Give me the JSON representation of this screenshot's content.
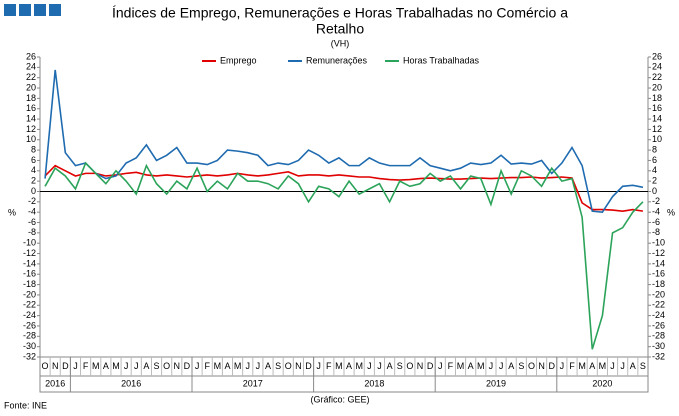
{
  "chart_data": {
    "type": "line",
    "title": [
      "Índices de Emprego, Remunerações e Horas Trabalhadas no Comércio a",
      "Retalho"
    ],
    "subtitle": "(VH)",
    "y_label": "%",
    "y2_label": "%",
    "source": "Fonte: INE",
    "credit": "(Gráfico: GEE)",
    "categories": [
      "O",
      "N",
      "D",
      "J",
      "F",
      "M",
      "A",
      "M",
      "J",
      "J",
      "A",
      "S",
      "O",
      "N",
      "D",
      "J",
      "F",
      "M",
      "A",
      "M",
      "J",
      "J",
      "A",
      "S",
      "O",
      "N",
      "D",
      "J",
      "F",
      "M",
      "A",
      "M",
      "J",
      "J",
      "A",
      "S",
      "O",
      "N",
      "D",
      "J",
      "F",
      "M",
      "A",
      "M",
      "J",
      "J",
      "A",
      "S",
      "O",
      "N",
      "D",
      "J",
      "F",
      "M",
      "A",
      "M",
      "J",
      "J",
      "A",
      "S"
    ],
    "year_labels": [
      "2016",
      "2016",
      "2017",
      "2018",
      "2019",
      "2020"
    ],
    "ylim": [
      -32,
      26
    ],
    "yticks": [
      -32,
      -30,
      -28,
      -26,
      -24,
      -22,
      -20,
      -18,
      -16,
      -14,
      -12,
      -10,
      -8,
      -6,
      -4,
      -2,
      0,
      2,
      4,
      6,
      8,
      10,
      12,
      14,
      16,
      18,
      20,
      22,
      24,
      26
    ],
    "y2ticks": [
      -32,
      -30,
      -28,
      -26,
      -24,
      -22,
      -20,
      -18,
      -16,
      -14,
      -12,
      -10,
      -8,
      -6,
      -4,
      -2,
      0,
      2,
      4,
      6,
      8,
      10,
      12,
      14,
      16,
      18,
      20,
      22,
      24,
      26
    ],
    "legend": "top",
    "series": [
      {
        "name": "Emprego",
        "color": "#e00000",
        "values": [
          3,
          5,
          4,
          3,
          3.5,
          3.5,
          3,
          3.2,
          3.5,
          3.7,
          3.2,
          3,
          3.2,
          3,
          2.8,
          3,
          3.2,
          3,
          3.2,
          3.5,
          3.2,
          3,
          3.2,
          3.5,
          3.8,
          3,
          3.2,
          3.2,
          3,
          3.2,
          3,
          2.8,
          2.8,
          2.5,
          2.3,
          2.2,
          2.3,
          2.5,
          2.6,
          2.5,
          2.4,
          2.4,
          2.5,
          2.6,
          2.5,
          2.6,
          2.7,
          2.7,
          2.8,
          2.6,
          2.7,
          2.8,
          2.6,
          -2.2,
          -3.5,
          -3.5,
          -3.6,
          -3.8,
          -3.5,
          -3.8
        ]
      },
      {
        "name": "Remunerações",
        "color": "#1f6bb0",
        "values": [
          2.5,
          23.5,
          7.5,
          5,
          5.5,
          3.5,
          2.5,
          3,
          5.5,
          6.5,
          9,
          6,
          7,
          8.5,
          5.5,
          5.5,
          5.2,
          6,
          8,
          7.8,
          7.5,
          7,
          5,
          5.5,
          5.2,
          6,
          8,
          7,
          5.5,
          6.5,
          5,
          5,
          6.5,
          5.5,
          5,
          5,
          5,
          6.5,
          5,
          4.5,
          4,
          4.5,
          5.5,
          5.2,
          5.5,
          7,
          5.3,
          5.5,
          5.3,
          6,
          3.5,
          5.5,
          8.5,
          5,
          -3.8,
          -4,
          -1,
          1,
          1.2,
          0.8
        ]
      },
      {
        "name": "Horas Trabalhadas",
        "color": "#2ca35a",
        "values": [
          1,
          4.5,
          3,
          0.5,
          5.5,
          3.5,
          1.5,
          4,
          2,
          -0.5,
          5,
          1.5,
          -0.5,
          2,
          0.5,
          4.5,
          0,
          2,
          0.5,
          3.5,
          2,
          2,
          1.5,
          0.5,
          3,
          1.5,
          -2,
          1,
          0.5,
          -1,
          2,
          -0.5,
          0.5,
          1.5,
          -2,
          2,
          1,
          1.5,
          3.5,
          2,
          3,
          0.5,
          3,
          2.5,
          -2.5,
          4,
          -0.5,
          4,
          3,
          1,
          4.5,
          2,
          2.5,
          -5,
          -30.5,
          -24,
          -8,
          -7,
          -4,
          -2
        ]
      }
    ]
  }
}
